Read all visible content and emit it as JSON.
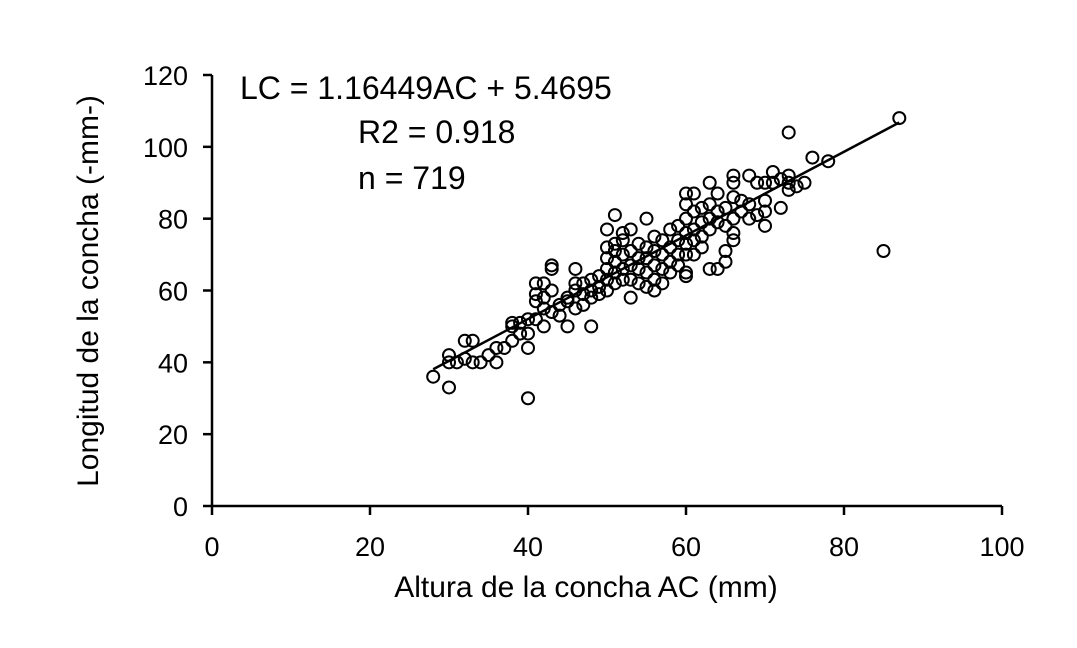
{
  "chart_data": {
    "type": "scatter",
    "xlabel": "Altura de la concha AC (mm)",
    "ylabel": "Longitud de la concha (-mm-)",
    "xlim": [
      0,
      100
    ],
    "ylim": [
      0,
      120
    ],
    "xticks": [
      0,
      20,
      40,
      60,
      80,
      100
    ],
    "yticks": [
      0,
      20,
      40,
      60,
      80,
      100,
      120
    ],
    "grid": false,
    "legend": "none",
    "marker": "open-circle",
    "annotations": {
      "equation": "LC = 1.16449AC + 5.4695",
      "r2": "R2 = 0.918",
      "n": "n = 719"
    },
    "trendline": {
      "slope": 1.16449,
      "intercept": 5.4695,
      "x_range": [
        28,
        87
      ]
    },
    "series": [
      {
        "points": [
          [
            28,
            36
          ],
          [
            30,
            33
          ],
          [
            30,
            40
          ],
          [
            30,
            42
          ],
          [
            31,
            40
          ],
          [
            32,
            41
          ],
          [
            32,
            46
          ],
          [
            33,
            46
          ],
          [
            33,
            40
          ],
          [
            34,
            40
          ],
          [
            35,
            42
          ],
          [
            36,
            40
          ],
          [
            36,
            44
          ],
          [
            37,
            44
          ],
          [
            38,
            46
          ],
          [
            38,
            50
          ],
          [
            38,
            51
          ],
          [
            39,
            48
          ],
          [
            39,
            51
          ],
          [
            40,
            44
          ],
          [
            40,
            52
          ],
          [
            40,
            30
          ],
          [
            40,
            48
          ],
          [
            41,
            52
          ],
          [
            41,
            57
          ],
          [
            41,
            59
          ],
          [
            41,
            62
          ],
          [
            42,
            50
          ],
          [
            42,
            55
          ],
          [
            42,
            58
          ],
          [
            42,
            62
          ],
          [
            43,
            54
          ],
          [
            43,
            60
          ],
          [
            43,
            66
          ],
          [
            43,
            67
          ],
          [
            44,
            53
          ],
          [
            44,
            56
          ],
          [
            45,
            50
          ],
          [
            45,
            57
          ],
          [
            45,
            58
          ],
          [
            46,
            55
          ],
          [
            46,
            60
          ],
          [
            46,
            62
          ],
          [
            46,
            66
          ],
          [
            47,
            56
          ],
          [
            47,
            59
          ],
          [
            47,
            62
          ],
          [
            48,
            50
          ],
          [
            48,
            58
          ],
          [
            48,
            60
          ],
          [
            48,
            63
          ],
          [
            49,
            59
          ],
          [
            49,
            61
          ],
          [
            49,
            64
          ],
          [
            50,
            60
          ],
          [
            50,
            63
          ],
          [
            50,
            66
          ],
          [
            50,
            69
          ],
          [
            50,
            72
          ],
          [
            50,
            77
          ],
          [
            51,
            62
          ],
          [
            51,
            65
          ],
          [
            51,
            68
          ],
          [
            51,
            71
          ],
          [
            51,
            73
          ],
          [
            51,
            81
          ],
          [
            52,
            63
          ],
          [
            52,
            66
          ],
          [
            52,
            70
          ],
          [
            52,
            74
          ],
          [
            52,
            76
          ],
          [
            53,
            58
          ],
          [
            53,
            63
          ],
          [
            53,
            67
          ],
          [
            53,
            71
          ],
          [
            53,
            77
          ],
          [
            54,
            62
          ],
          [
            54,
            66
          ],
          [
            54,
            69
          ],
          [
            54,
            73
          ],
          [
            55,
            61
          ],
          [
            55,
            65
          ],
          [
            55,
            69
          ],
          [
            55,
            72
          ],
          [
            55,
            80
          ],
          [
            56,
            60
          ],
          [
            56,
            63
          ],
          [
            56,
            67
          ],
          [
            56,
            71
          ],
          [
            56,
            75
          ],
          [
            57,
            62
          ],
          [
            57,
            66
          ],
          [
            57,
            70
          ],
          [
            57,
            74
          ],
          [
            58,
            65
          ],
          [
            58,
            68
          ],
          [
            58,
            72
          ],
          [
            58,
            77
          ],
          [
            59,
            67
          ],
          [
            59,
            70
          ],
          [
            59,
            74
          ],
          [
            59,
            78
          ],
          [
            60,
            64
          ],
          [
            60,
            65
          ],
          [
            60,
            70
          ],
          [
            60,
            73
          ],
          [
            60,
            76
          ],
          [
            60,
            80
          ],
          [
            60,
            84
          ],
          [
            60,
            87
          ],
          [
            61,
            70
          ],
          [
            61,
            74
          ],
          [
            61,
            77
          ],
          [
            61,
            82
          ],
          [
            61,
            87
          ],
          [
            62,
            72
          ],
          [
            62,
            75
          ],
          [
            62,
            79
          ],
          [
            62,
            83
          ],
          [
            63,
            66
          ],
          [
            63,
            77
          ],
          [
            63,
            80
          ],
          [
            63,
            84
          ],
          [
            63,
            90
          ],
          [
            64,
            66
          ],
          [
            64,
            79
          ],
          [
            64,
            82
          ],
          [
            64,
            87
          ],
          [
            65,
            68
          ],
          [
            65,
            71
          ],
          [
            65,
            78
          ],
          [
            65,
            83
          ],
          [
            66,
            74
          ],
          [
            66,
            76
          ],
          [
            66,
            80
          ],
          [
            66,
            86
          ],
          [
            66,
            90
          ],
          [
            66,
            92
          ],
          [
            67,
            82
          ],
          [
            67,
            85
          ],
          [
            68,
            80
          ],
          [
            68,
            84
          ],
          [
            68,
            92
          ],
          [
            69,
            81
          ],
          [
            69,
            90
          ],
          [
            70,
            78
          ],
          [
            70,
            82
          ],
          [
            70,
            85
          ],
          [
            70,
            90
          ],
          [
            71,
            90
          ],
          [
            71,
            93
          ],
          [
            72,
            83
          ],
          [
            72,
            91
          ],
          [
            73,
            88
          ],
          [
            73,
            90
          ],
          [
            73,
            92
          ],
          [
            73,
            104
          ],
          [
            74,
            89
          ],
          [
            75,
            90
          ],
          [
            76,
            97
          ],
          [
            78,
            96
          ],
          [
            85,
            71
          ],
          [
            87,
            108
          ]
        ]
      }
    ]
  }
}
